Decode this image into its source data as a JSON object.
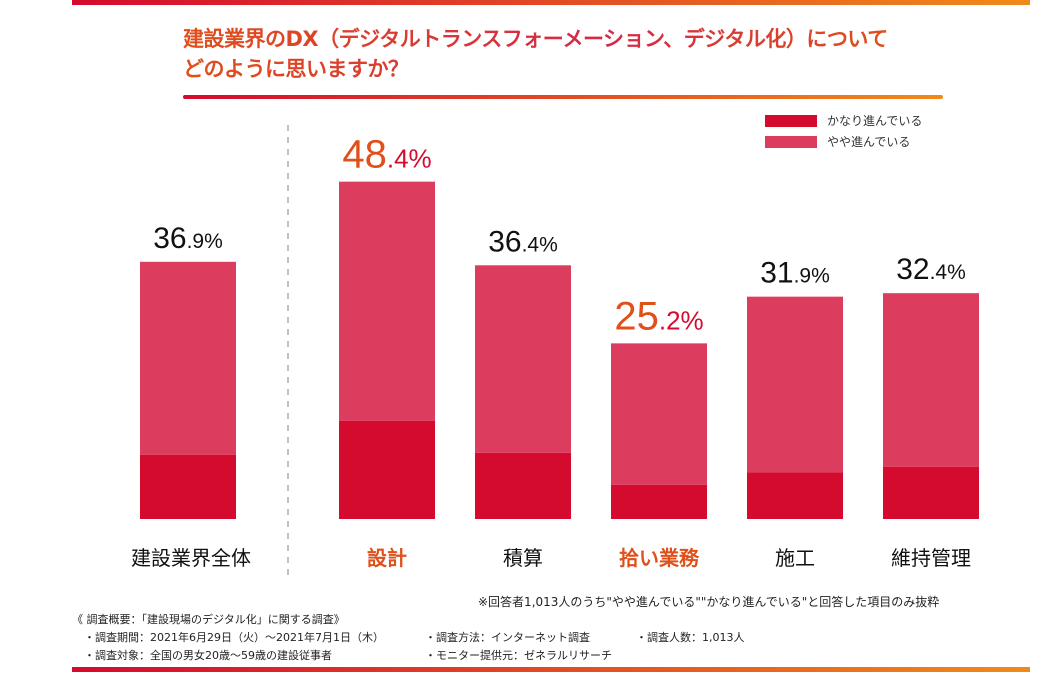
{
  "title_line1": "建設業界のDX（デジタルトランスフォーメーション、デジタル化）について",
  "title_line2": "どのように思いますか？",
  "colors": {
    "dark": "#d40a2f",
    "light": "#dc3d5e",
    "highlight": "#e0501a",
    "text": "#111111"
  },
  "chart_data": {
    "type": "bar",
    "stacked": true,
    "categories": [
      "建設業界全体",
      "設計",
      "積算",
      "拾い業務",
      "施工",
      "維持管理"
    ],
    "highlighted": [
      "設計",
      "拾い業務"
    ],
    "series": [
      {
        "name": "かなり進んでいる",
        "values": [
          9.2,
          14.1,
          9.5,
          4.9,
          6.7,
          7.5
        ]
      },
      {
        "name": "やや進んでいる",
        "values": [
          27.7,
          34.3,
          26.9,
          20.3,
          25.2,
          24.9
        ]
      }
    ],
    "totals": [
      36.9,
      48.4,
      36.4,
      25.2,
      31.9,
      32.4
    ],
    "total_labels": [
      [
        "36",
        ".9%"
      ],
      [
        "48",
        ".4%"
      ],
      [
        "36",
        ".4%"
      ],
      [
        "25",
        ".2%"
      ],
      [
        "31",
        ".9%"
      ],
      [
        "32",
        ".4%"
      ]
    ],
    "ylim": [
      0,
      50
    ],
    "grid": false,
    "legend_position": "top-right"
  },
  "notes": {
    "footnote": "※回答者1,013人のうち\"やや進んでいる\"\"かなり進んでいる\"と回答した項目のみ抜粋",
    "survey_title": "《 調査概要：「建設現場のデジタル化」に関する調査》",
    "period": "・調査期間：2021年6月29日（火）〜2021年7月1日（木）",
    "method": "・調査方法：インターネット調査",
    "count": "・調査人数：1,013人",
    "target": "・調査対象：全国の男女20歳〜59歳の建設従事者",
    "provider": "・モニター提供元：ゼネラルリサーチ"
  }
}
